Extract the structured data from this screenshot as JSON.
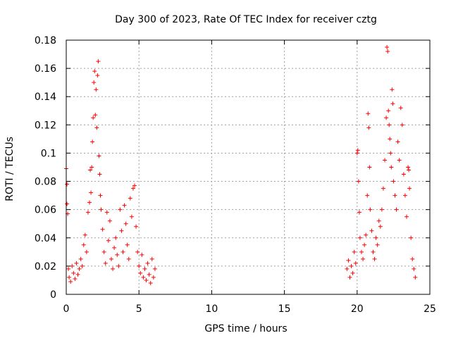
{
  "chart_data": {
    "type": "scatter",
    "title": "Day 300 of 2023, Rate Of TEC Index for receiver cztg",
    "xlabel": "GPS time / hours",
    "ylabel": "ROTI / TECUs",
    "xlim": [
      0,
      25
    ],
    "ylim": [
      0,
      0.18
    ],
    "grid": true,
    "marker": "+",
    "color": "#ff0000",
    "x_ticks": [
      "0",
      "5",
      "10",
      "15",
      "20",
      "25"
    ],
    "y_ticks": [
      "0",
      "0.02",
      "0.04",
      "0.06",
      "0.08",
      "0.1",
      "0.12",
      "0.14",
      "0.16",
      "0.18"
    ],
    "series": [
      {
        "points": [
          [
            0.0,
            0.089
          ],
          [
            0.05,
            0.078
          ],
          [
            0.05,
            0.064
          ],
          [
            0.1,
            0.057
          ],
          [
            0.15,
            0.018
          ],
          [
            0.2,
            0.012
          ],
          [
            0.3,
            0.009
          ],
          [
            0.4,
            0.02
          ],
          [
            0.5,
            0.015
          ],
          [
            0.6,
            0.011
          ],
          [
            0.7,
            0.022
          ],
          [
            0.8,
            0.014
          ],
          [
            0.9,
            0.018
          ],
          [
            1.0,
            0.025
          ],
          [
            1.1,
            0.02
          ],
          [
            1.2,
            0.035
          ],
          [
            1.3,
            0.042
          ],
          [
            1.4,
            0.03
          ],
          [
            1.5,
            0.058
          ],
          [
            1.6,
            0.065
          ],
          [
            1.65,
            0.088
          ],
          [
            1.7,
            0.072
          ],
          [
            1.75,
            0.09
          ],
          [
            1.8,
            0.108
          ],
          [
            1.85,
            0.125
          ],
          [
            1.9,
            0.15
          ],
          [
            1.95,
            0.158
          ],
          [
            2.0,
            0.127
          ],
          [
            2.05,
            0.145
          ],
          [
            2.1,
            0.118
          ],
          [
            2.15,
            0.155
          ],
          [
            2.2,
            0.165
          ],
          [
            2.25,
            0.098
          ],
          [
            2.3,
            0.085
          ],
          [
            2.35,
            0.07
          ],
          [
            2.4,
            0.06
          ],
          [
            2.5,
            0.046
          ],
          [
            2.6,
            0.03
          ],
          [
            2.7,
            0.022
          ],
          [
            2.8,
            0.058
          ],
          [
            2.9,
            0.038
          ],
          [
            3.0,
            0.052
          ],
          [
            3.1,
            0.025
          ],
          [
            3.2,
            0.018
          ],
          [
            3.3,
            0.033
          ],
          [
            3.4,
            0.04
          ],
          [
            3.5,
            0.028
          ],
          [
            3.6,
            0.02
          ],
          [
            3.7,
            0.06
          ],
          [
            3.8,
            0.045
          ],
          [
            3.9,
            0.03
          ],
          [
            4.0,
            0.063
          ],
          [
            4.1,
            0.05
          ],
          [
            4.2,
            0.035
          ],
          [
            4.3,
            0.025
          ],
          [
            4.4,
            0.068
          ],
          [
            4.5,
            0.055
          ],
          [
            4.6,
            0.075
          ],
          [
            4.7,
            0.077
          ],
          [
            4.8,
            0.048
          ],
          [
            4.9,
            0.03
          ],
          [
            5.0,
            0.02
          ],
          [
            5.1,
            0.015
          ],
          [
            5.2,
            0.028
          ],
          [
            5.3,
            0.012
          ],
          [
            5.4,
            0.018
          ],
          [
            5.5,
            0.01
          ],
          [
            5.6,
            0.022
          ],
          [
            5.7,
            0.014
          ],
          [
            5.8,
            0.008
          ],
          [
            5.9,
            0.025
          ],
          [
            6.0,
            0.012
          ],
          [
            6.1,
            0.018
          ],
          [
            19.3,
            0.018
          ],
          [
            19.4,
            0.024
          ],
          [
            19.5,
            0.012
          ],
          [
            19.6,
            0.02
          ],
          [
            19.7,
            0.015
          ],
          [
            19.8,
            0.03
          ],
          [
            19.9,
            0.022
          ],
          [
            20.0,
            0.1
          ],
          [
            20.05,
            0.102
          ],
          [
            20.1,
            0.08
          ],
          [
            20.15,
            0.058
          ],
          [
            20.2,
            0.04
          ],
          [
            20.3,
            0.03
          ],
          [
            20.4,
            0.025
          ],
          [
            20.5,
            0.035
          ],
          [
            20.6,
            0.042
          ],
          [
            20.7,
            0.07
          ],
          [
            20.75,
            0.128
          ],
          [
            20.8,
            0.118
          ],
          [
            20.85,
            0.09
          ],
          [
            20.9,
            0.06
          ],
          [
            21.0,
            0.045
          ],
          [
            21.1,
            0.03
          ],
          [
            21.2,
            0.025
          ],
          [
            21.3,
            0.04
          ],
          [
            21.4,
            0.035
          ],
          [
            21.5,
            0.052
          ],
          [
            21.6,
            0.048
          ],
          [
            21.7,
            0.06
          ],
          [
            21.8,
            0.075
          ],
          [
            21.9,
            0.095
          ],
          [
            22.0,
            0.125
          ],
          [
            22.05,
            0.175
          ],
          [
            22.1,
            0.172
          ],
          [
            22.15,
            0.13
          ],
          [
            22.2,
            0.12
          ],
          [
            22.25,
            0.11
          ],
          [
            22.3,
            0.1
          ],
          [
            22.35,
            0.09
          ],
          [
            22.4,
            0.145
          ],
          [
            22.45,
            0.135
          ],
          [
            22.5,
            0.08
          ],
          [
            22.6,
            0.07
          ],
          [
            22.7,
            0.06
          ],
          [
            22.8,
            0.108
          ],
          [
            22.9,
            0.095
          ],
          [
            23.0,
            0.132
          ],
          [
            23.1,
            0.12
          ],
          [
            23.2,
            0.085
          ],
          [
            23.3,
            0.07
          ],
          [
            23.4,
            0.055
          ],
          [
            23.5,
            0.09
          ],
          [
            23.55,
            0.088
          ],
          [
            23.6,
            0.075
          ],
          [
            23.7,
            0.04
          ],
          [
            23.8,
            0.025
          ],
          [
            23.9,
            0.018
          ],
          [
            24.0,
            0.012
          ]
        ]
      }
    ]
  }
}
